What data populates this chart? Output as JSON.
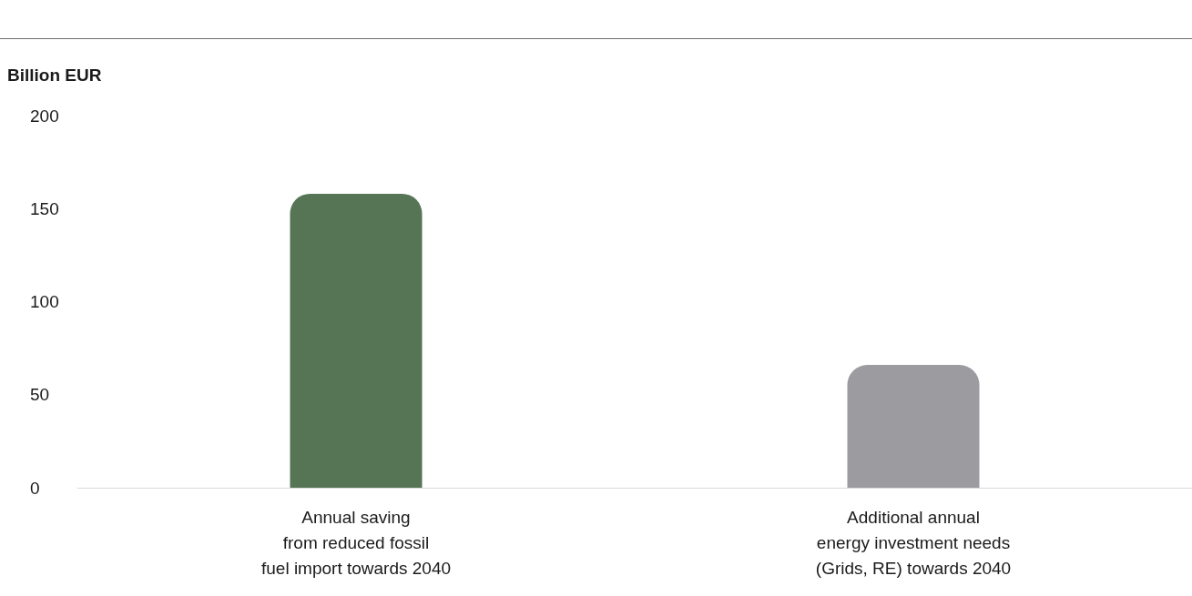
{
  "chart_data": {
    "type": "bar",
    "ylabel": "Billion EUR",
    "categories": [
      "Annual saving\nfrom reduced fossil\nfuel import towards 2040",
      "Additional annual\nenergy investment needs\n(Grids, RE) towards 2040"
    ],
    "values": [
      158,
      66
    ],
    "colors": [
      "#557555",
      "#9c9ba0"
    ],
    "ylim": [
      0,
      200
    ],
    "yticks": [
      0,
      50,
      100,
      150,
      200
    ],
    "grid": false
  }
}
